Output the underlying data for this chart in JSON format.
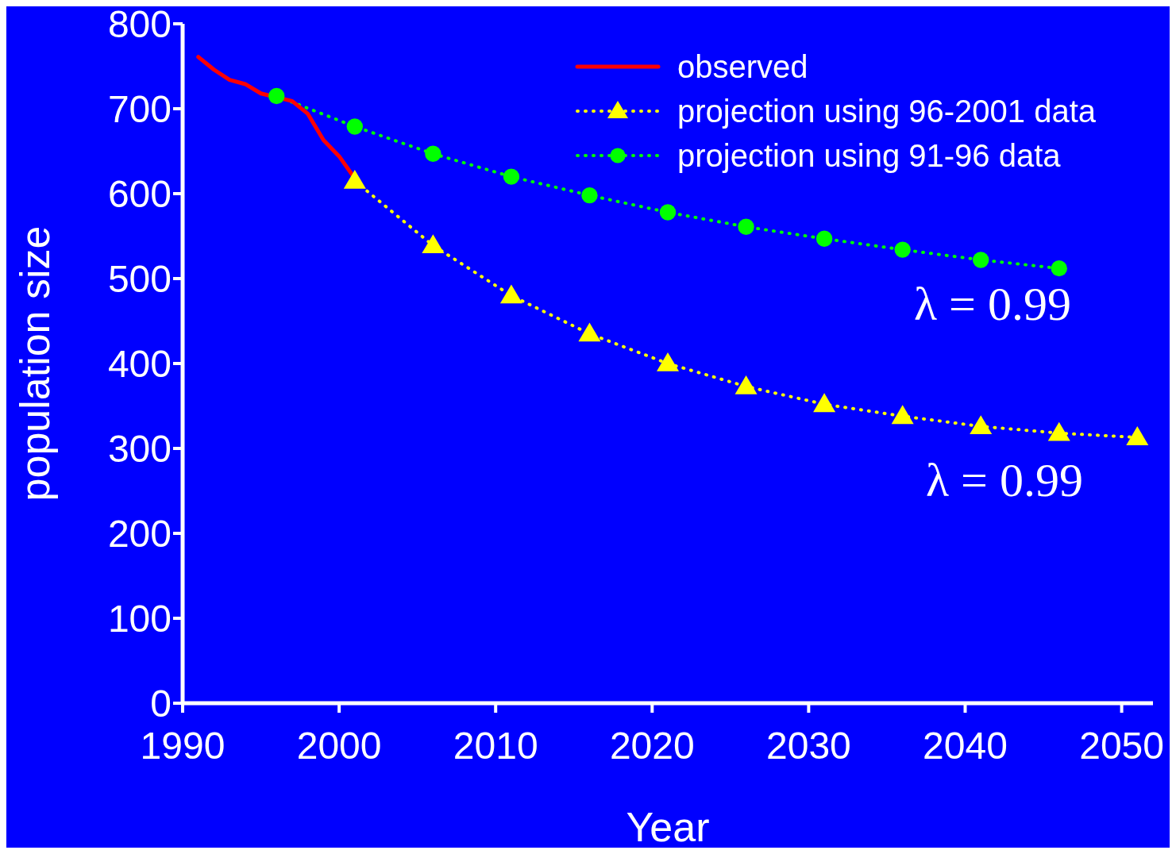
{
  "chart_data": {
    "type": "line",
    "xlabel": "Year",
    "ylabel": "population size",
    "xlim": [
      1990,
      2052
    ],
    "xticks": [
      1990,
      2000,
      2010,
      2020,
      2030,
      2040,
      2050
    ],
    "ylim": [
      0,
      800
    ],
    "yticks": [
      0,
      100,
      200,
      300,
      400,
      500,
      600,
      700,
      800
    ],
    "grid": false,
    "legend": "top right",
    "series": [
      {
        "name": "observed",
        "color": "#ff0000",
        "marker": "none",
        "line_style": "solid",
        "x": [
          1991,
          1992,
          1993,
          1994,
          1995,
          1996,
          1997,
          1998,
          1999,
          2000,
          2001
        ],
        "values": [
          761,
          746,
          734,
          729,
          718,
          null,
          709,
          694,
          663,
          644,
          618
        ]
      },
      {
        "name": "projection using 96-2001 data",
        "color": "#ffff00",
        "marker": "triangle",
        "line_style": "dotted",
        "x": [
          2001,
          2006,
          2011,
          2016,
          2021,
          2026,
          2031,
          2036,
          2041,
          2046,
          2051
        ],
        "values": [
          615,
          539,
          480,
          435,
          400,
          373,
          352,
          338,
          326,
          318,
          313
        ]
      },
      {
        "name": "projection using 91-96 data",
        "color": "#00ff00",
        "marker": "circle",
        "line_style": "dotted",
        "x": [
          1996,
          2001,
          2006,
          2011,
          2016,
          2021,
          2026,
          2031,
          2036,
          2041,
          2046
        ],
        "values": [
          715,
          679,
          647,
          620,
          598,
          578,
          561,
          547,
          534,
          522,
          512
        ]
      }
    ],
    "annotations": [
      "λ = 0.99",
      "λ = 0.99"
    ]
  }
}
